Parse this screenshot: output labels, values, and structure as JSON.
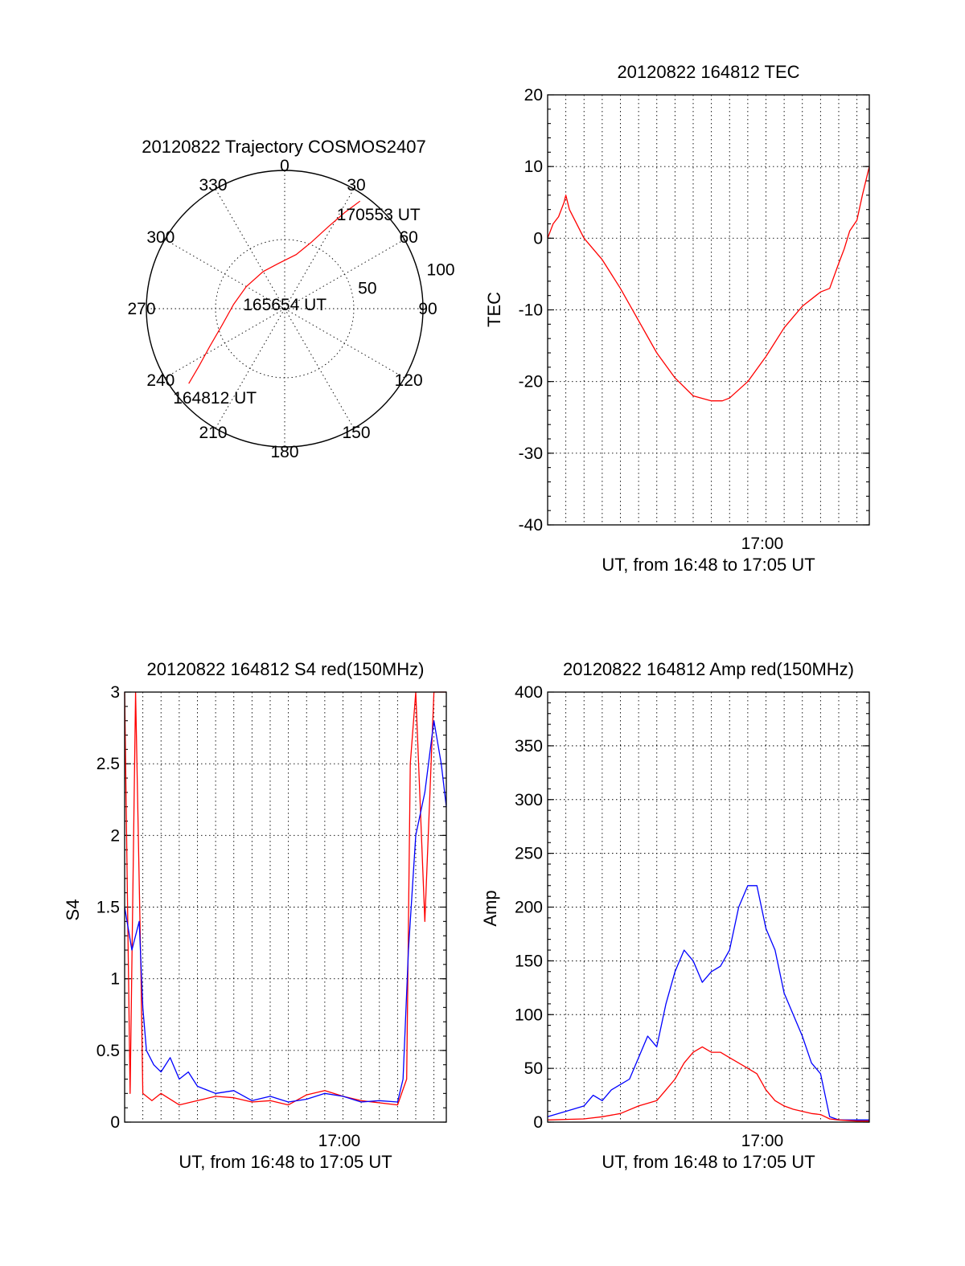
{
  "chart_data": [
    {
      "id": "trajectory",
      "type": "polar",
      "title": "20120822 Trajectory COSMOS2407",
      "azimuth_labels": [
        "0",
        "30",
        "60",
        "90",
        "120",
        "150",
        "180",
        "210",
        "240",
        "270",
        "300",
        "330"
      ],
      "elevation_labels": [
        "50",
        "100"
      ],
      "series": [
        {
          "color": "#ff0000",
          "points": [
            {
              "azimuth": 232,
              "radius": 88
            },
            {
              "azimuth": 236,
              "radius": 75
            },
            {
              "azimuth": 243,
              "radius": 61
            },
            {
              "azimuth": 255,
              "radius": 47
            },
            {
              "azimuth": 275,
              "radius": 37
            },
            {
              "azimuth": 300,
              "radius": 32
            },
            {
              "azimuth": 330,
              "radius": 31
            },
            {
              "azimuth": 352,
              "radius": 33
            },
            {
              "azimuth": 12,
              "radius": 40
            },
            {
              "azimuth": 22,
              "radius": 52
            },
            {
              "azimuth": 28,
              "radius": 67
            },
            {
              "azimuth": 32,
              "radius": 82
            },
            {
              "azimuth": 35,
              "radius": 95
            }
          ]
        }
      ],
      "annotations": [
        {
          "text": "164812 UT",
          "azimuth": 218,
          "radius": 82
        },
        {
          "text": "165654 UT",
          "azimuth": 2,
          "radius": 3
        },
        {
          "text": "170553 UT",
          "azimuth": 45,
          "radius": 96
        }
      ]
    },
    {
      "id": "tec",
      "type": "line",
      "title": "20120822 164812 TEC",
      "ylabel": "TEC",
      "xlabel": "UT, from 16:48 to 17:05 UT",
      "x_unit": "minutes since 16:48:12 UT",
      "xlim": [
        0,
        17.68
      ],
      "ylim": [
        -40,
        20
      ],
      "yticks": [
        -40,
        -30,
        -20,
        -10,
        0,
        10,
        20
      ],
      "xticks": [
        {
          "value": 11.8,
          "label": "17:00"
        }
      ],
      "series": [
        {
          "color": "#ff0000",
          "x": [
            0,
            0.3,
            0.6,
            0.9,
            1.0,
            1.2,
            2.0,
            3.0,
            4.0,
            5.0,
            6.0,
            7.0,
            8.0,
            9.0,
            9.6,
            10.0,
            11.0,
            12.0,
            13.0,
            14.0,
            15.0,
            15.5,
            16.0,
            16.3,
            16.6,
            17.0,
            17.3,
            17.68
          ],
          "y": [
            0,
            2,
            3,
            5,
            6,
            4,
            0,
            -3,
            -7,
            -11.5,
            -16,
            -19.5,
            -22,
            -22.7,
            -22.7,
            -22.3,
            -20,
            -16.5,
            -12.5,
            -9.5,
            -7.5,
            -7,
            -3.5,
            -1.5,
            1,
            2.5,
            6,
            10
          ]
        }
      ]
    },
    {
      "id": "s4",
      "type": "line",
      "title": "20120822 164812 S4 red(150MHz)",
      "ylabel": "S4",
      "xlabel": "UT, from 16:48 to 17:05 UT",
      "x_unit": "minutes since 16:48:12 UT",
      "xlim": [
        0,
        17.68
      ],
      "ylim": [
        0,
        3
      ],
      "yticks": [
        0,
        0.5,
        1,
        1.5,
        2,
        2.5,
        3
      ],
      "ytick_labels": [
        "0",
        "0.5",
        "1",
        "1.5",
        "2",
        "2.5",
        "3"
      ],
      "xticks": [
        {
          "value": 11.8,
          "label": "17:00"
        }
      ],
      "series": [
        {
          "color": "#ff0000",
          "x": [
            0,
            0.3,
            0.6,
            0.9,
            1.0,
            1.5,
            2.0,
            3.0,
            4.0,
            5.0,
            6.0,
            7.0,
            8.0,
            9.0,
            10.0,
            11.0,
            12.0,
            13.0,
            15.0,
            15.5,
            15.7,
            16.0,
            16.5,
            17.0,
            17.68
          ],
          "y": [
            3,
            0.2,
            3,
            1.0,
            0.2,
            0.15,
            0.2,
            0.12,
            0.15,
            0.18,
            0.17,
            0.14,
            0.15,
            0.12,
            0.19,
            0.22,
            0.18,
            0.15,
            0.12,
            0.3,
            2.5,
            3,
            1.4,
            3,
            3
          ]
        },
        {
          "color": "#0000ff",
          "x": [
            0,
            0.4,
            0.8,
            1.0,
            1.2,
            1.6,
            2.0,
            2.5,
            3.0,
            3.5,
            4.0,
            5.0,
            6.0,
            7.0,
            8.0,
            9.0,
            10.0,
            11.0,
            12.0,
            13.0,
            14.0,
            15.0,
            15.3,
            15.6,
            16.0,
            16.5,
            17.0,
            17.4,
            17.68
          ],
          "y": [
            1.5,
            1.2,
            1.4,
            0.8,
            0.5,
            0.4,
            0.35,
            0.45,
            0.3,
            0.35,
            0.25,
            0.2,
            0.22,
            0.15,
            0.18,
            0.14,
            0.16,
            0.2,
            0.18,
            0.14,
            0.15,
            0.14,
            0.3,
            1.2,
            2.0,
            2.3,
            2.8,
            2.5,
            2.2
          ]
        }
      ]
    },
    {
      "id": "amp",
      "type": "line",
      "title": "20120822 164812 Amp red(150MHz)",
      "ylabel": "Amp",
      "xlabel": "UT, from 16:48 to 17:05 UT",
      "x_unit": "minutes since 16:48:12 UT",
      "xlim": [
        0,
        17.68
      ],
      "ylim": [
        0,
        400
      ],
      "yticks": [
        0,
        50,
        100,
        150,
        200,
        250,
        300,
        350,
        400
      ],
      "xticks": [
        {
          "value": 11.8,
          "label": "17:00"
        }
      ],
      "series": [
        {
          "color": "#0000ff",
          "x": [
            0,
            1,
            2,
            2.5,
            3,
            3.5,
            4,
            4.5,
            5,
            5.5,
            6,
            6.5,
            7,
            7.5,
            8,
            8.5,
            9,
            9.5,
            10,
            10.5,
            11,
            11.5,
            12,
            12.5,
            13,
            13.5,
            14,
            14.5,
            15,
            15.5,
            16,
            17,
            17.68
          ],
          "y": [
            5,
            10,
            15,
            25,
            20,
            30,
            35,
            40,
            60,
            80,
            70,
            110,
            140,
            160,
            150,
            130,
            140,
            145,
            160,
            200,
            220,
            220,
            180,
            160,
            120,
            100,
            80,
            55,
            45,
            5,
            2,
            2,
            2
          ]
        },
        {
          "color": "#ff0000",
          "x": [
            0,
            2,
            3,
            4,
            5,
            6,
            6.5,
            7,
            7.5,
            8,
            8.5,
            9,
            9.5,
            10,
            10.5,
            11,
            11.5,
            12,
            12.5,
            13,
            13.5,
            14,
            14.5,
            15,
            15.5,
            16,
            17,
            17.68
          ],
          "y": [
            2,
            3,
            5,
            8,
            15,
            20,
            30,
            40,
            55,
            65,
            70,
            65,
            65,
            60,
            55,
            50,
            45,
            30,
            20,
            15,
            12,
            10,
            8,
            7,
            3,
            2,
            1,
            1
          ]
        }
      ]
    }
  ]
}
